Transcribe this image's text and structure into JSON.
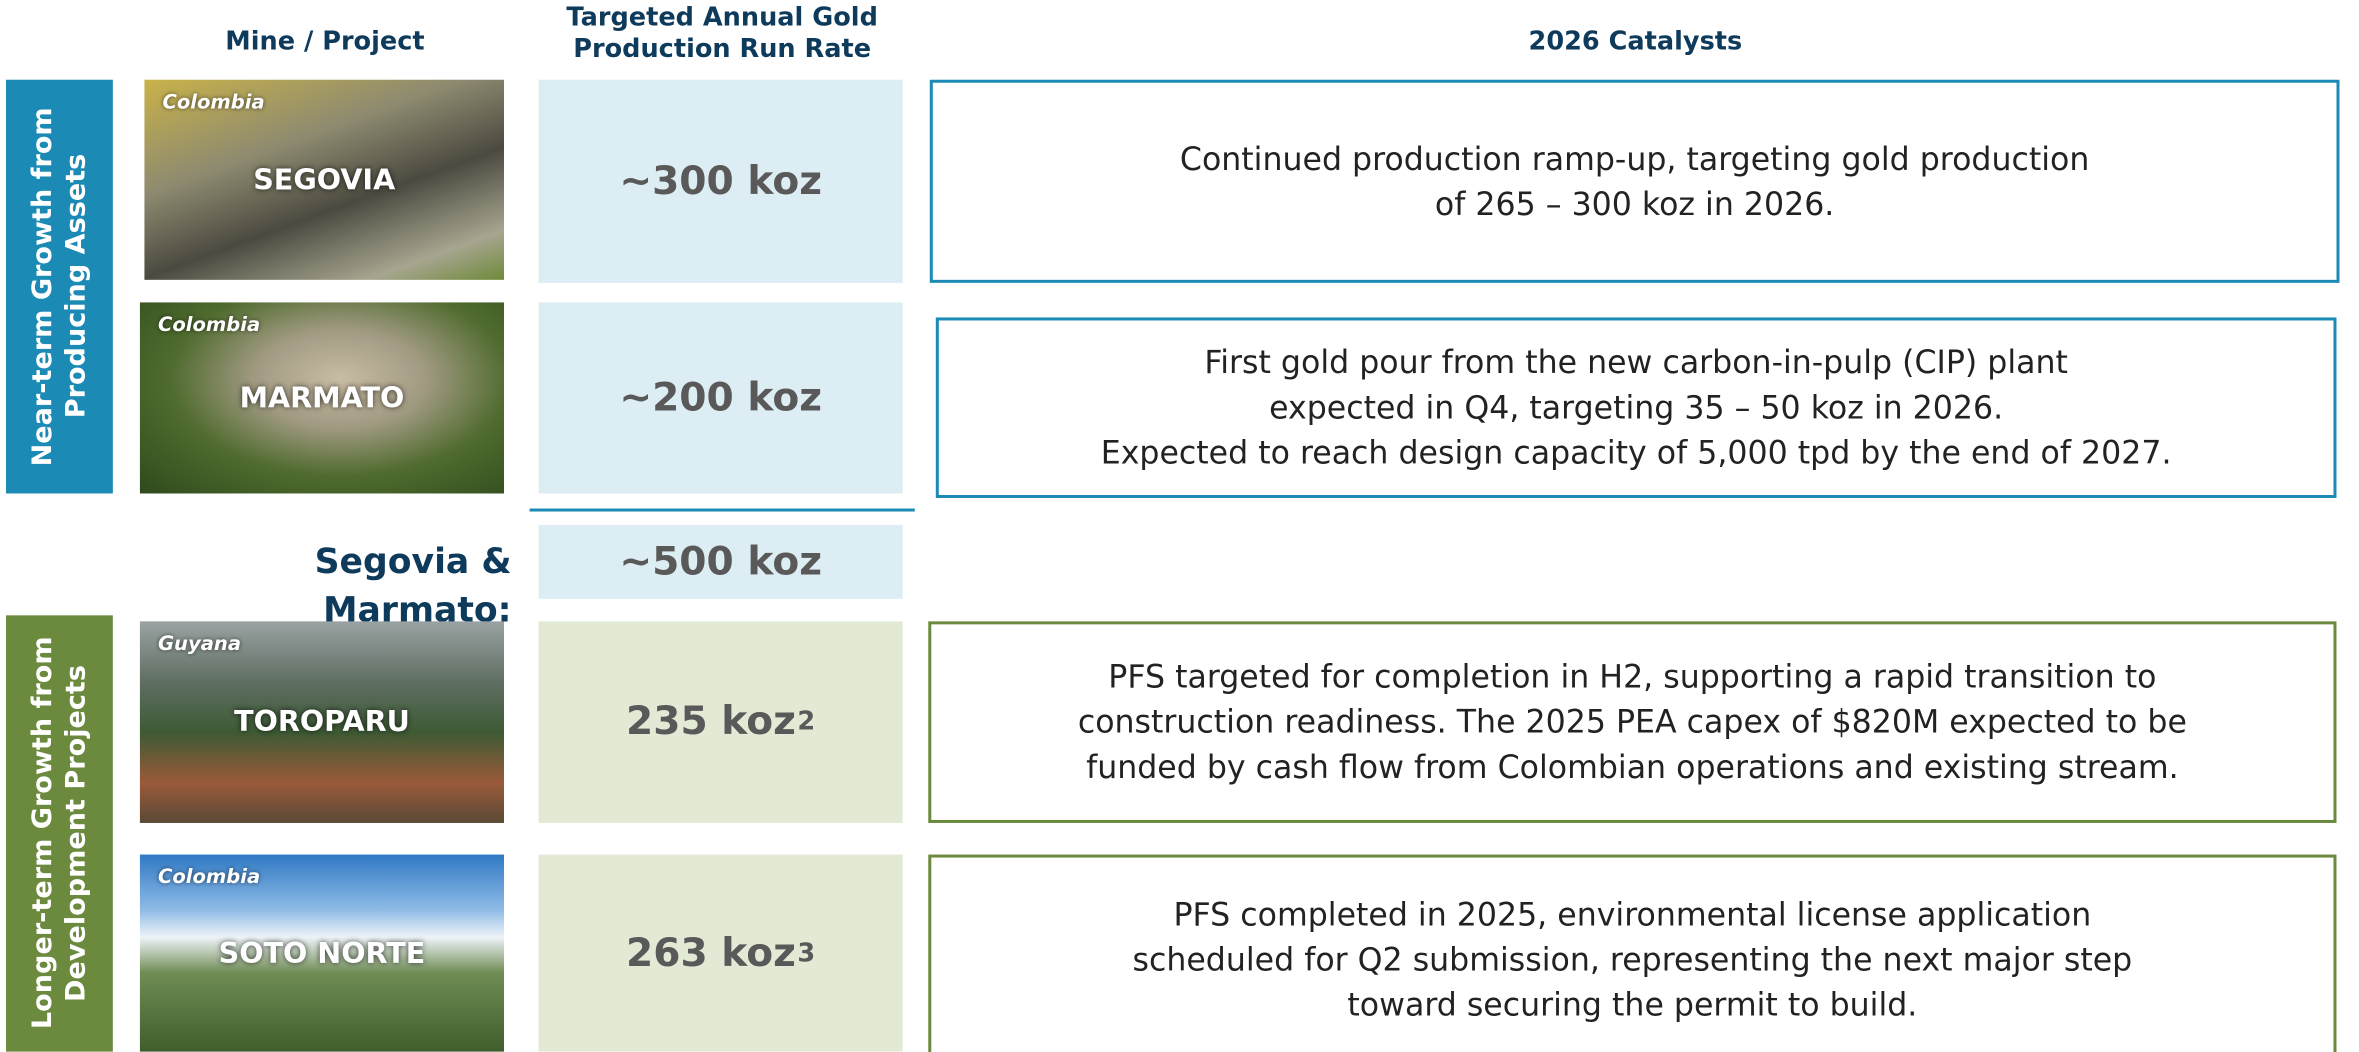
{
  "header": {
    "project": "Mine / Project",
    "rate": "Targeted Annual Gold Production Run Rate",
    "catalysts": "2026 Catalysts"
  },
  "groups": [
    {
      "label": "Near-term Growth from Producing Assets"
    },
    {
      "label": "Longer-term Growth from Development Projects"
    }
  ],
  "rows": [
    {
      "country": "Colombia",
      "name": "SEGOVIA",
      "rate": "~300 koz",
      "catalyst": [
        "Continued production ramp-up, targeting gold production",
        "of 265 – 300 koz in 2026."
      ]
    },
    {
      "country": "Colombia",
      "name": "MARMATO",
      "rate": "~200 koz",
      "catalyst": [
        "First gold pour from the new carbon-in-pulp (CIP) plant",
        "expected in Q4, targeting 35 – 50 koz in 2026.",
        "Expected to reach design capacity of 5,000 tpd by the end of 2027."
      ]
    },
    {
      "country": "Guyana",
      "name": "TOROPARU",
      "rate": "235 koz",
      "footnote": "2",
      "catalyst": [
        "PFS targeted for completion in H2, supporting a rapid transition to",
        "construction readiness. The 2025 PEA capex of $820M expected to be",
        "funded by cash flow from Colombian operations and existing stream."
      ]
    },
    {
      "country": "Colombia",
      "name": "SOTO NORTE",
      "rate": "263 koz",
      "footnote": "3",
      "catalyst": [
        "PFS completed in 2025, environmental license application",
        "scheduled for Q2 submission, representing the next major step",
        "toward securing the permit to build."
      ]
    }
  ],
  "subtotal": {
    "label": "Segovia & Marmato:",
    "rate": "~500 koz"
  }
}
